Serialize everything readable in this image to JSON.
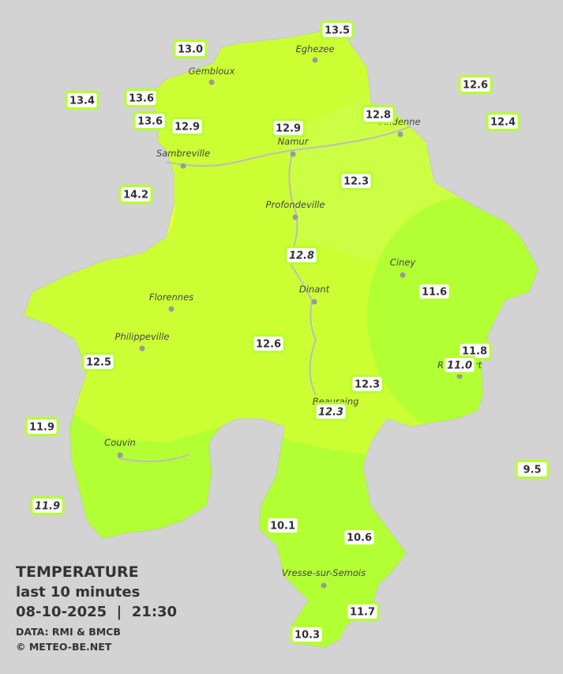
{
  "title": {
    "heading": "TEMPERATURE",
    "period": "last 10 minutes",
    "timestamp": "08-10-2025  |  21:30",
    "source": "DATA: RMI & BMCB",
    "credit": "© METEO-BE.NET"
  },
  "towns": [
    "Eghezee",
    "Gembloux",
    "Andenne",
    "Namur",
    "Sambreville",
    "Profondeville",
    "Ciney",
    "Dinant",
    "Florennes",
    "Philippeville",
    "Rochefort",
    "Beauraing",
    "Couvin",
    "Vresse-sur-Semois"
  ],
  "stations": [
    "13.5",
    "13.0",
    "13.4",
    "13.6",
    "13.6",
    "12.9",
    "12.9",
    "12.8",
    "12.6",
    "12.4",
    "12.3",
    "14.2",
    "12.8",
    "11.6",
    "12.6",
    "12.5",
    "11.8",
    "11.0",
    "12.3",
    "12.3",
    "11.9",
    "9.5",
    "11.9",
    "10.1",
    "10.6",
    "11.7",
    "10.3"
  ]
}
